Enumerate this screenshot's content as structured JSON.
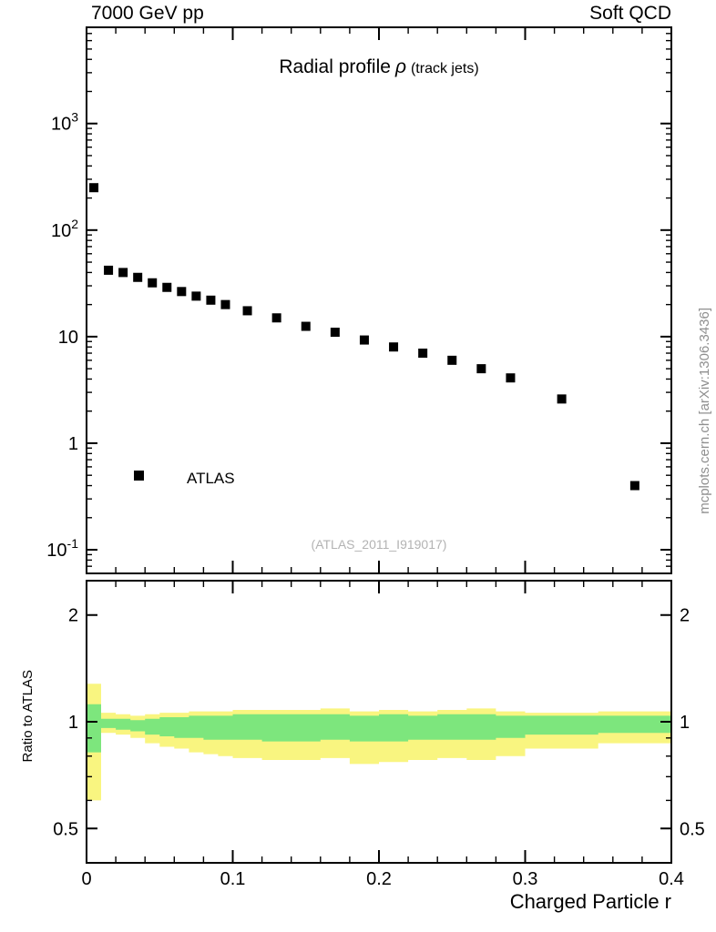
{
  "header": {
    "left": "7000 GeV pp",
    "right": "Soft QCD"
  },
  "title": {
    "main": "Radial profile",
    "rho": "ρ",
    "suffix": "(track jets)"
  },
  "legend": {
    "label": "ATLAS"
  },
  "ref_label": "(ATLAS_2011_I919017)",
  "watermark": "mcplots.cern.ch [arXiv:1306.3436]",
  "ratio_ylabel": "Ratio to ATLAS",
  "xaxis_title": "Charged Particle r",
  "colors": {
    "band_yellow": "#f9f580",
    "band_green": "#7de67d",
    "marker": "#000000",
    "frame": "#000000",
    "watermark_gray": "#8f8f8f",
    "ref_gray": "#b3b3b3"
  },
  "chart_data": {
    "type": "scatter",
    "title": "Radial profile ρ (track jets)",
    "xlabel": "Charged Particle r",
    "xlim": [
      0,
      0.4
    ],
    "xticks": [
      {
        "v": 0,
        "l": "0"
      },
      {
        "v": 0.1,
        "l": "0.1"
      },
      {
        "v": 0.2,
        "l": "0.2"
      },
      {
        "v": 0.3,
        "l": "0.3"
      },
      {
        "v": 0.4,
        "l": "0.4"
      }
    ],
    "xminor": 0.02,
    "main": {
      "yscale": "log",
      "ylim": [
        0.06,
        8000
      ],
      "yticks": [
        {
          "v": 1000,
          "m": "10",
          "e": "3"
        },
        {
          "v": 100,
          "m": "10",
          "e": "2"
        },
        {
          "v": 10,
          "m": "10",
          "e": ""
        },
        {
          "v": 1,
          "m": "1",
          "e": ""
        },
        {
          "v": 0.1,
          "m": "10",
          "e": "-1"
        }
      ],
      "series": [
        {
          "name": "ATLAS",
          "marker": "filled-square",
          "color": "#000000",
          "x": [
            0.005,
            0.015,
            0.025,
            0.035,
            0.045,
            0.055,
            0.065,
            0.075,
            0.085,
            0.095,
            0.11,
            0.13,
            0.15,
            0.17,
            0.19,
            0.21,
            0.23,
            0.25,
            0.27,
            0.29,
            0.325,
            0.375
          ],
          "y": [
            250,
            42,
            40,
            36,
            32,
            29,
            26.5,
            24,
            22,
            20,
            17.5,
            15,
            12.5,
            11,
            9.3,
            8,
            7,
            6,
            5,
            4.1,
            2.6,
            0.4
          ]
        }
      ]
    },
    "ratio": {
      "yscale": "log",
      "ylim": [
        0.4,
        2.5
      ],
      "ylabel": "Ratio to ATLAS",
      "yticks": [
        {
          "v": 2,
          "l": "2"
        },
        {
          "v": 1,
          "l": "1"
        },
        {
          "v": 0.5,
          "l": "0.5"
        }
      ],
      "bands": {
        "yellow": [
          [
            0.0,
            0.01,
            0.6,
            1.28
          ],
          [
            0.01,
            0.02,
            0.93,
            1.06
          ],
          [
            0.02,
            0.03,
            0.92,
            1.05
          ],
          [
            0.03,
            0.04,
            0.9,
            1.04
          ],
          [
            0.04,
            0.05,
            0.87,
            1.05
          ],
          [
            0.05,
            0.06,
            0.85,
            1.06
          ],
          [
            0.06,
            0.07,
            0.84,
            1.06
          ],
          [
            0.07,
            0.08,
            0.82,
            1.07
          ],
          [
            0.08,
            0.09,
            0.81,
            1.07
          ],
          [
            0.09,
            0.1,
            0.8,
            1.07
          ],
          [
            0.1,
            0.12,
            0.79,
            1.08
          ],
          [
            0.12,
            0.14,
            0.78,
            1.08
          ],
          [
            0.14,
            0.16,
            0.78,
            1.08
          ],
          [
            0.16,
            0.18,
            0.79,
            1.09
          ],
          [
            0.18,
            0.2,
            0.76,
            1.07
          ],
          [
            0.2,
            0.22,
            0.77,
            1.08
          ],
          [
            0.22,
            0.24,
            0.78,
            1.07
          ],
          [
            0.24,
            0.26,
            0.79,
            1.08
          ],
          [
            0.26,
            0.28,
            0.78,
            1.09
          ],
          [
            0.28,
            0.3,
            0.8,
            1.07
          ],
          [
            0.3,
            0.35,
            0.84,
            1.06
          ],
          [
            0.35,
            0.4,
            0.87,
            1.07
          ]
        ],
        "green": [
          [
            0.0,
            0.01,
            0.82,
            1.12
          ],
          [
            0.01,
            0.02,
            0.96,
            1.02
          ],
          [
            0.02,
            0.03,
            0.95,
            1.02
          ],
          [
            0.03,
            0.04,
            0.94,
            1.01
          ],
          [
            0.04,
            0.05,
            0.92,
            1.02
          ],
          [
            0.05,
            0.06,
            0.91,
            1.03
          ],
          [
            0.06,
            0.07,
            0.9,
            1.03
          ],
          [
            0.07,
            0.08,
            0.9,
            1.04
          ],
          [
            0.08,
            0.09,
            0.89,
            1.04
          ],
          [
            0.09,
            0.1,
            0.89,
            1.04
          ],
          [
            0.1,
            0.12,
            0.89,
            1.05
          ],
          [
            0.12,
            0.14,
            0.88,
            1.05
          ],
          [
            0.14,
            0.16,
            0.88,
            1.05
          ],
          [
            0.16,
            0.18,
            0.89,
            1.05
          ],
          [
            0.18,
            0.2,
            0.88,
            1.04
          ],
          [
            0.2,
            0.22,
            0.88,
            1.05
          ],
          [
            0.22,
            0.24,
            0.89,
            1.04
          ],
          [
            0.24,
            0.26,
            0.89,
            1.05
          ],
          [
            0.26,
            0.28,
            0.89,
            1.05
          ],
          [
            0.28,
            0.3,
            0.9,
            1.04
          ],
          [
            0.3,
            0.35,
            0.92,
            1.04
          ],
          [
            0.35,
            0.4,
            0.93,
            1.04
          ]
        ]
      }
    }
  }
}
